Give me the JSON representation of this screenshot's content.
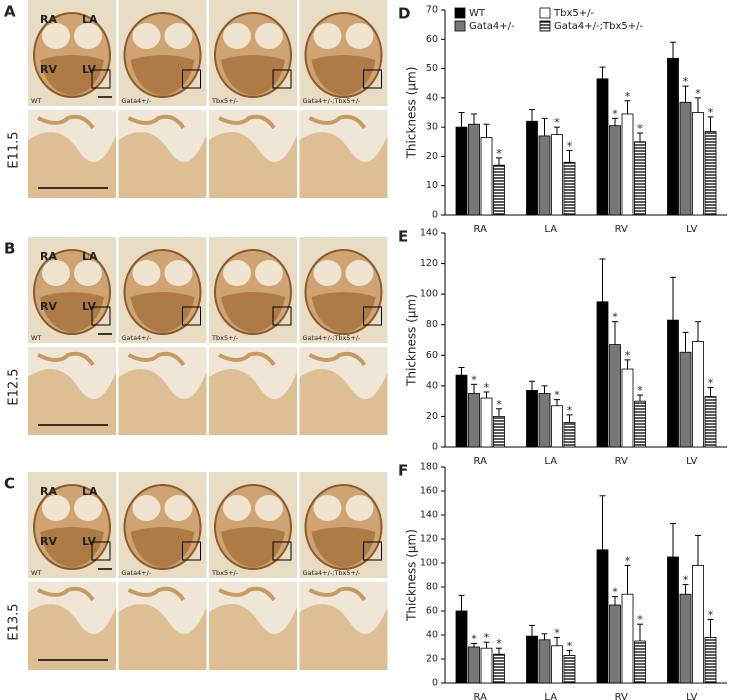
{
  "histology": {
    "rows": [
      {
        "panel": "A",
        "stage": "E11.5"
      },
      {
        "panel": "B",
        "stage": "E12.5"
      },
      {
        "panel": "C",
        "stage": "E13.5"
      }
    ],
    "genotypes": [
      "WT",
      "Gata4+/-",
      "Tbx5+/-",
      "Gata4+/-;Tbx5+/-"
    ],
    "chambers": [
      "RA",
      "LA",
      "RV",
      "LV"
    ]
  },
  "chart_data": [
    {
      "panel": "D",
      "type": "bar",
      "ylabel": "Thickness (μm)",
      "categories": [
        "RA",
        "LA",
        "RV",
        "LV"
      ],
      "ylim": [
        0,
        70
      ],
      "yticks": [
        0,
        10,
        20,
        30,
        40,
        50,
        60,
        70
      ],
      "legend": "top",
      "series": [
        {
          "name": "WT",
          "color": "#000000",
          "values": [
            30,
            32,
            46.5,
            53.5
          ],
          "errors": [
            5,
            4,
            4,
            5.5
          ],
          "annotations": [
            null,
            null,
            null,
            null
          ]
        },
        {
          "name": "Gata4+/-",
          "color": "#777777",
          "values": [
            31,
            27,
            30.5,
            38.5
          ],
          "errors": [
            3.5,
            6,
            2.5,
            5.5
          ],
          "annotations": [
            null,
            null,
            "*",
            "*"
          ]
        },
        {
          "name": "Tbx5+/-",
          "color": "#ffffff",
          "values": [
            26.5,
            27.5,
            34.5,
            35
          ],
          "errors": [
            4.5,
            2.5,
            4.5,
            5
          ],
          "annotations": [
            null,
            "*",
            "*",
            "*"
          ]
        },
        {
          "name": "Gata4+/-;Tbx5+/-",
          "color": "#000000",
          "pattern": "stripes",
          "values": [
            17,
            18,
            25,
            28.5
          ],
          "errors": [
            2.5,
            4,
            3,
            5
          ],
          "annotations": [
            "*",
            "*",
            "*",
            "*"
          ]
        }
      ]
    },
    {
      "panel": "E",
      "type": "bar",
      "ylabel": "Thickness (μm)",
      "categories": [
        "RA",
        "LA",
        "RV",
        "LV"
      ],
      "ylim": [
        0,
        140
      ],
      "yticks": [
        0,
        20,
        40,
        60,
        80,
        100,
        120,
        140
      ],
      "series": [
        {
          "color": "#000000",
          "values": [
            47,
            37,
            95,
            83
          ],
          "errors": [
            5,
            6,
            28,
            28
          ],
          "annotations": [
            null,
            null,
            null,
            null
          ]
        },
        {
          "color": "#777777",
          "values": [
            35,
            35,
            67,
            62
          ],
          "errors": [
            6,
            5,
            15,
            13
          ],
          "annotations": [
            "*",
            null,
            "*",
            null
          ]
        },
        {
          "color": "#ffffff",
          "values": [
            32,
            27,
            51,
            69
          ],
          "errors": [
            4,
            4,
            6,
            13
          ],
          "annotations": [
            "*",
            "*",
            "*",
            null
          ]
        },
        {
          "color": "#000000",
          "pattern": "stripes",
          "values": [
            20,
            16,
            30,
            33
          ],
          "errors": [
            5,
            5,
            4,
            6
          ],
          "annotations": [
            "*",
            "*",
            "*",
            "*"
          ]
        }
      ]
    },
    {
      "panel": "F",
      "type": "bar",
      "ylabel": "Thickness (μm)",
      "categories": [
        "RA",
        "LA",
        "RV",
        "LV"
      ],
      "ylim": [
        0,
        180
      ],
      "yticks": [
        0,
        20,
        40,
        60,
        80,
        100,
        120,
        140,
        160,
        180
      ],
      "series": [
        {
          "color": "#000000",
          "values": [
            60,
            39,
            111,
            105
          ],
          "errors": [
            13,
            9,
            45,
            28
          ],
          "annotations": [
            null,
            null,
            null,
            null
          ]
        },
        {
          "color": "#777777",
          "values": [
            30,
            36,
            65,
            74
          ],
          "errors": [
            3,
            5,
            7,
            8
          ],
          "annotations": [
            "*",
            null,
            "*",
            "*"
          ]
        },
        {
          "color": "#ffffff",
          "values": [
            29,
            31,
            74,
            98
          ],
          "errors": [
            5,
            7,
            24,
            25
          ],
          "annotations": [
            "*",
            "*",
            "*",
            null
          ]
        },
        {
          "color": "#000000",
          "pattern": "stripes",
          "values": [
            24,
            23,
            35,
            38
          ],
          "errors": [
            5,
            4,
            14,
            15
          ],
          "annotations": [
            "*",
            "*",
            "*",
            "*"
          ]
        }
      ]
    }
  ]
}
